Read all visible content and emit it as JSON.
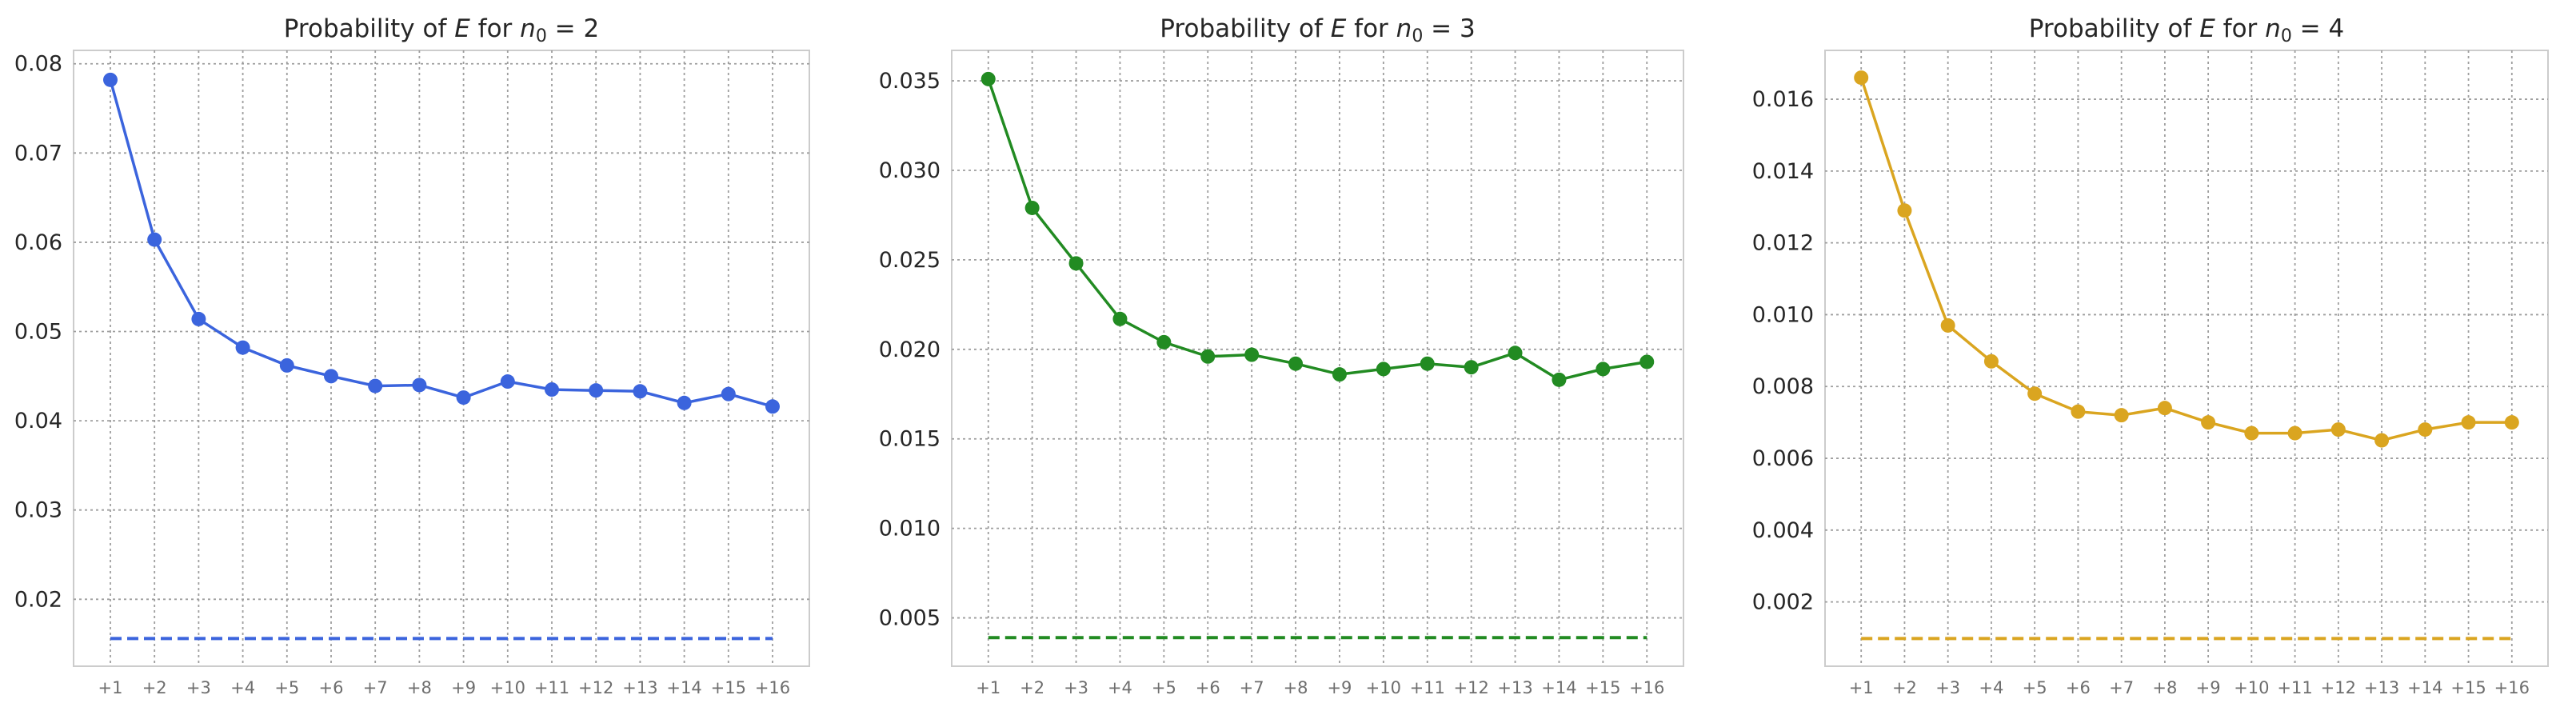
{
  "chart_data": [
    {
      "type": "line",
      "title_prefix": "Probability of ",
      "title_var": "E",
      "title_mid": " for ",
      "title_n": "n",
      "title_sub": "0",
      "title_eq": " = 2",
      "categories": [
        "+1",
        "+2",
        "+3",
        "+4",
        "+5",
        "+6",
        "+7",
        "+8",
        "+9",
        "+10",
        "+11",
        "+12",
        "+13",
        "+14",
        "+15",
        "+16"
      ],
      "series": [
        {
          "values": [
            0.0782,
            0.0603,
            0.0514,
            0.0482,
            0.0462,
            0.045,
            0.0439,
            0.044,
            0.0426,
            0.0444,
            0.0435,
            0.0434,
            0.0433,
            0.042,
            0.043,
            0.0416
          ],
          "color": "#3b64dd",
          "style": "solid-markers"
        },
        {
          "values": [
            0.0156,
            0.0156,
            0.0156,
            0.0156,
            0.0156,
            0.0156,
            0.0156,
            0.0156,
            0.0156,
            0.0156,
            0.0156,
            0.0156,
            0.0156,
            0.0156,
            0.0156,
            0.0156
          ],
          "color": "#3b64dd",
          "style": "dashed"
        }
      ],
      "yticks": [
        "0.02",
        "0.03",
        "0.04",
        "0.05",
        "0.06",
        "0.07",
        "0.08"
      ],
      "ylim": [
        0.0125,
        0.0815
      ],
      "grid": true
    },
    {
      "type": "line",
      "title_prefix": "Probability of ",
      "title_var": "E",
      "title_mid": " for ",
      "title_n": "n",
      "title_sub": "0",
      "title_eq": " = 3",
      "categories": [
        "+1",
        "+2",
        "+3",
        "+4",
        "+5",
        "+6",
        "+7",
        "+8",
        "+9",
        "+10",
        "+11",
        "+12",
        "+13",
        "+14",
        "+15",
        "+16"
      ],
      "series": [
        {
          "values": [
            0.0351,
            0.0279,
            0.0248,
            0.0217,
            0.0204,
            0.0196,
            0.0197,
            0.0192,
            0.0186,
            0.0189,
            0.0192,
            0.019,
            0.0198,
            0.0183,
            0.0189,
            0.0193
          ],
          "color": "#228b22",
          "style": "solid-markers"
        },
        {
          "values": [
            0.0039,
            0.0039,
            0.0039,
            0.0039,
            0.0039,
            0.0039,
            0.0039,
            0.0039,
            0.0039,
            0.0039,
            0.0039,
            0.0039,
            0.0039,
            0.0039,
            0.0039,
            0.0039
          ],
          "color": "#228b22",
          "style": "dashed"
        }
      ],
      "yticks": [
        "0.005",
        "0.010",
        "0.015",
        "0.020",
        "0.025",
        "0.030",
        "0.035"
      ],
      "ylim": [
        0.0023,
        0.0367
      ],
      "grid": true
    },
    {
      "type": "line",
      "title_prefix": "Probability of ",
      "title_var": "E",
      "title_mid": " for ",
      "title_n": "n",
      "title_sub": "0",
      "title_eq": " = 4",
      "categories": [
        "+1",
        "+2",
        "+3",
        "+4",
        "+5",
        "+6",
        "+7",
        "+8",
        "+9",
        "+10",
        "+11",
        "+12",
        "+13",
        "+14",
        "+15",
        "+16"
      ],
      "series": [
        {
          "values": [
            0.0166,
            0.0129,
            0.0097,
            0.0087,
            0.0078,
            0.0073,
            0.0072,
            0.0074,
            0.007,
            0.0067,
            0.0067,
            0.0068,
            0.0065,
            0.0068,
            0.007,
            0.007
          ],
          "color": "#daa520",
          "style": "solid-markers"
        },
        {
          "values": [
            0.00098,
            0.00098,
            0.00098,
            0.00098,
            0.00098,
            0.00098,
            0.00098,
            0.00098,
            0.00098,
            0.00098,
            0.00098,
            0.00098,
            0.00098,
            0.00098,
            0.00098,
            0.00098
          ],
          "color": "#daa520",
          "style": "dashed"
        }
      ],
      "yticks": [
        "0.002",
        "0.004",
        "0.006",
        "0.008",
        "0.010",
        "0.012",
        "0.014",
        "0.016"
      ],
      "ylim": [
        0.00021,
        0.01736
      ],
      "grid": true
    }
  ]
}
